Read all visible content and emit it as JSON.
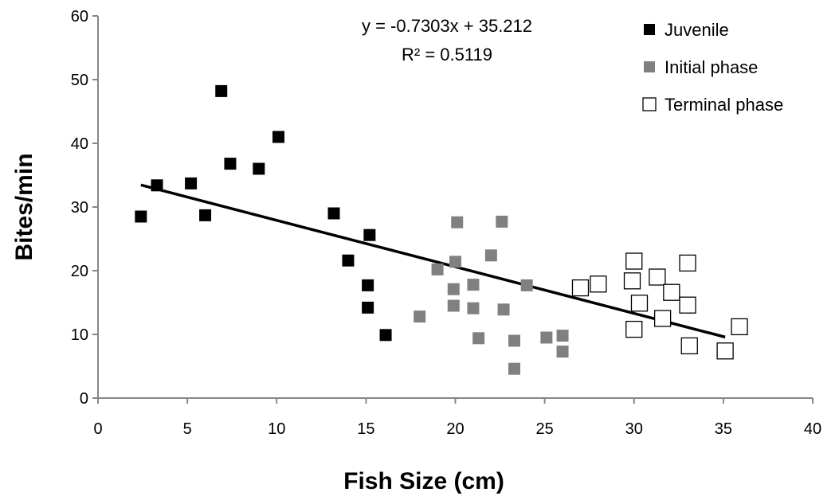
{
  "chart_data": {
    "type": "scatter",
    "title": "",
    "xlabel": "Fish Size (cm)",
    "ylabel": "Bites/min",
    "xlim": [
      0,
      40
    ],
    "ylim": [
      0,
      60
    ],
    "xticks": [
      0,
      5,
      10,
      15,
      20,
      25,
      30,
      35,
      40
    ],
    "yticks": [
      0,
      10,
      20,
      30,
      40,
      50,
      60
    ],
    "xtick_labels": [
      "0",
      "5",
      "10",
      "15",
      "20",
      "25",
      "30",
      "35",
      "40"
    ],
    "ytick_labels": [
      "0",
      "10",
      "20",
      "30",
      "40",
      "50",
      "60"
    ],
    "grid": false,
    "legend_position": "top-right",
    "series": [
      {
        "name": "Juvenile",
        "marker": "filled-square",
        "color": "#000000",
        "points": [
          {
            "x": 2.4,
            "y": 28.5
          },
          {
            "x": 3.3,
            "y": 33.4
          },
          {
            "x": 5.2,
            "y": 33.7
          },
          {
            "x": 6.0,
            "y": 28.7
          },
          {
            "x": 6.9,
            "y": 48.2
          },
          {
            "x": 7.4,
            "y": 36.8
          },
          {
            "x": 9.0,
            "y": 36.0
          },
          {
            "x": 10.1,
            "y": 41.0
          },
          {
            "x": 13.2,
            "y": 29.0
          },
          {
            "x": 14.0,
            "y": 21.6
          },
          {
            "x": 15.2,
            "y": 25.6
          },
          {
            "x": 15.1,
            "y": 17.7
          },
          {
            "x": 15.1,
            "y": 14.2
          },
          {
            "x": 16.1,
            "y": 9.9
          }
        ]
      },
      {
        "name": "Initial phase",
        "marker": "filled-square",
        "color": "#808080",
        "points": [
          {
            "x": 18.0,
            "y": 12.8
          },
          {
            "x": 19.0,
            "y": 20.2
          },
          {
            "x": 19.9,
            "y": 14.5
          },
          {
            "x": 19.9,
            "y": 17.1
          },
          {
            "x": 20.0,
            "y": 21.4
          },
          {
            "x": 20.1,
            "y": 27.6
          },
          {
            "x": 21.0,
            "y": 17.8
          },
          {
            "x": 21.0,
            "y": 14.1
          },
          {
            "x": 21.3,
            "y": 9.4
          },
          {
            "x": 22.0,
            "y": 22.4
          },
          {
            "x": 22.6,
            "y": 27.7
          },
          {
            "x": 22.7,
            "y": 13.9
          },
          {
            "x": 23.3,
            "y": 9.0
          },
          {
            "x": 23.3,
            "y": 4.6
          },
          {
            "x": 24.0,
            "y": 17.7
          },
          {
            "x": 25.1,
            "y": 9.5
          },
          {
            "x": 26.0,
            "y": 9.8
          },
          {
            "x": 26.0,
            "y": 7.3
          }
        ]
      },
      {
        "name": "Terminal phase",
        "marker": "open-square",
        "color": "#000000",
        "points": [
          {
            "x": 27.0,
            "y": 17.3
          },
          {
            "x": 28.0,
            "y": 17.9
          },
          {
            "x": 29.9,
            "y": 18.4
          },
          {
            "x": 30.0,
            "y": 21.5
          },
          {
            "x": 30.0,
            "y": 10.8
          },
          {
            "x": 30.3,
            "y": 14.9
          },
          {
            "x": 31.3,
            "y": 19.0
          },
          {
            "x": 31.6,
            "y": 12.5
          },
          {
            "x": 32.1,
            "y": 16.6
          },
          {
            "x": 33.0,
            "y": 21.2
          },
          {
            "x": 33.0,
            "y": 14.6
          },
          {
            "x": 33.1,
            "y": 8.2
          },
          {
            "x": 35.1,
            "y": 7.4
          },
          {
            "x": 35.9,
            "y": 11.2
          }
        ]
      }
    ],
    "trendline": {
      "type": "linear",
      "slope": -0.7303,
      "intercept": 35.212,
      "x_range": [
        2.4,
        35.1
      ],
      "equation_text": "y = -0.7303x + 35.212",
      "r2_text": "R² = 0.5119"
    }
  }
}
